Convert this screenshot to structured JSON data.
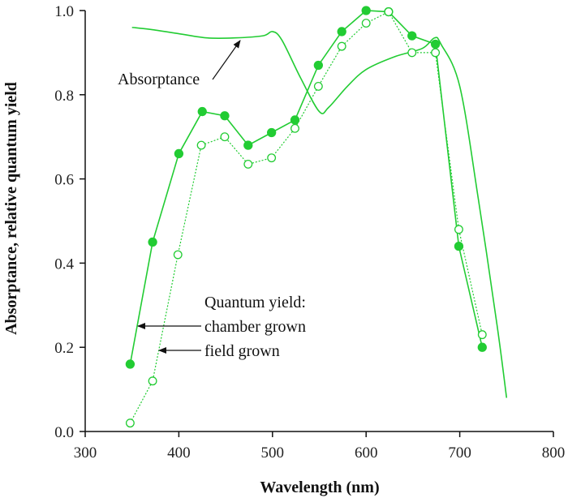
{
  "chart_data": {
    "type": "line",
    "title": "",
    "xlabel": "Wavelength (nm)",
    "ylabel": "Absorptance, relative quantum yield",
    "xlim": [
      300,
      800
    ],
    "ylim": [
      0,
      1.0
    ],
    "xticks": [
      "300",
      "400",
      "500",
      "600",
      "700",
      "800"
    ],
    "yticks": [
      "0.0",
      "0.2",
      "0.4",
      "0.6",
      "0.8",
      "1.0"
    ],
    "grid": false,
    "legend": null,
    "line_color": "#22cc33",
    "series": [
      {
        "name": "Absorptance",
        "style": "solid-line",
        "x": [
          350,
          370,
          400,
          430,
          460,
          490,
          500,
          510,
          530,
          550,
          560,
          580,
          600,
          630,
          660,
          673,
          680,
          700,
          720,
          740,
          750
        ],
        "values": [
          0.96,
          0.955,
          0.945,
          0.935,
          0.935,
          0.94,
          0.95,
          0.93,
          0.84,
          0.76,
          0.77,
          0.82,
          0.86,
          0.89,
          0.91,
          0.935,
          0.92,
          0.82,
          0.55,
          0.25,
          0.08
        ]
      },
      {
        "name": "chamber grown",
        "style": "filled-circles-solid",
        "x": [
          348,
          372,
          400,
          425,
          449,
          474,
          499,
          524,
          549,
          574,
          600,
          624,
          649,
          674,
          699,
          724
        ],
        "values": [
          0.16,
          0.45,
          0.66,
          0.76,
          0.75,
          0.68,
          0.71,
          0.74,
          0.87,
          0.95,
          1.0,
          0.997,
          0.94,
          0.92,
          0.44,
          0.2
        ]
      },
      {
        "name": "field grown",
        "style": "open-circles-dotted",
        "x": [
          348,
          372,
          399,
          424,
          449,
          474,
          499,
          524,
          549,
          574,
          600,
          624,
          649,
          674,
          699,
          724
        ],
        "values": [
          0.02,
          0.12,
          0.42,
          0.68,
          0.7,
          0.635,
          0.65,
          0.72,
          0.82,
          0.915,
          0.97,
          0.997,
          0.9,
          0.9,
          0.48,
          0.23
        ]
      }
    ],
    "annotations": {
      "absorptance_label": "Absorptance",
      "quantum_yield_heading": "Quantum yield:",
      "chamber_label": "chamber grown",
      "field_label": "field grown"
    }
  }
}
